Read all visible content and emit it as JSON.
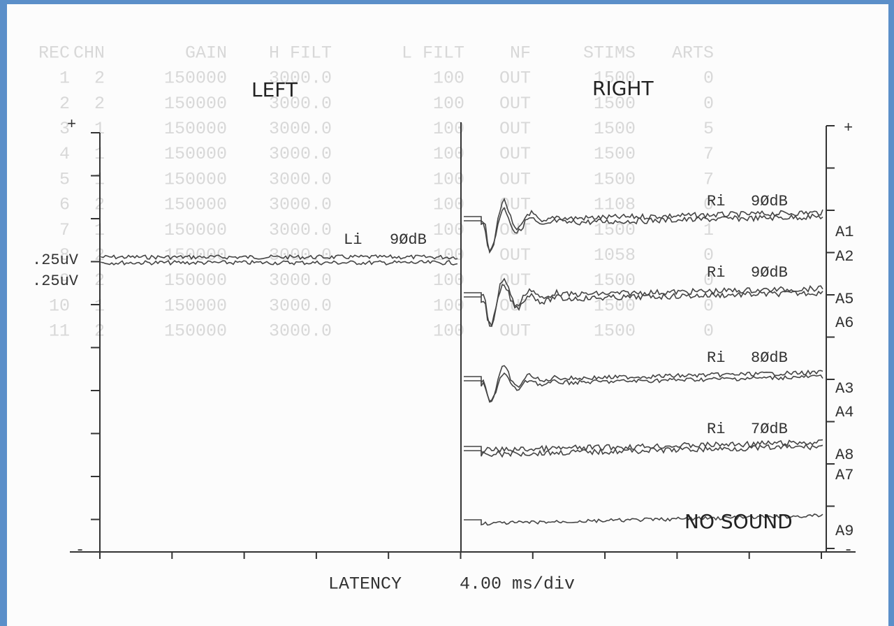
{
  "table": {
    "header": [
      "REC",
      "CHN",
      "GAIN",
      "H FILT",
      "L FILT",
      "NF",
      "STIMS",
      "ARTS"
    ],
    "rows": [
      [
        "1",
        "2",
        "150000",
        "3000.0",
        "100",
        "OUT",
        "1500",
        "0"
      ],
      [
        "2",
        "2",
        "150000",
        "3000.0",
        "100",
        "OUT",
        "1500",
        "0"
      ],
      [
        "3",
        "1",
        "150000",
        "3000.0",
        "100",
        "OUT",
        "1500",
        "5"
      ],
      [
        "4",
        "1",
        "150000",
        "3000.0",
        "100",
        "OUT",
        "1500",
        "7"
      ],
      [
        "5",
        "1",
        "150000",
        "3000.0",
        "100",
        "OUT",
        "1500",
        "7"
      ],
      [
        "6",
        "2",
        "150000",
        "3000.0",
        "100",
        "OUT",
        "1108",
        "0"
      ],
      [
        "7",
        "1",
        "150000",
        "3000.0",
        "100",
        "OUT",
        "1500",
        "1"
      ],
      [
        "8",
        "2",
        "150000",
        "3000.0",
        "100",
        "OUT",
        "1058",
        "0"
      ],
      [
        "9",
        "2",
        "150000",
        "3000.0",
        "100",
        "OUT",
        "1500",
        "0"
      ],
      [
        "10",
        "1",
        "150000",
        "3000.0",
        "100",
        "OUT",
        "1500",
        "0"
      ],
      [
        "11",
        "2",
        "150000",
        "3000.0",
        "100",
        "OUT",
        "1500",
        "0"
      ]
    ]
  },
  "plot": {
    "left_title": "LEFT",
    "right_title": "RIGHT",
    "plus_left": "+",
    "plus_right": "+",
    "minus_left": "-",
    "minus_right": "-",
    "scale_labels": [
      ".25uV",
      ".25uV"
    ],
    "left_trace_label": [
      "Li",
      "9ØdB"
    ],
    "right_trace_labels": [
      [
        "Ri",
        "9ØdB"
      ],
      [
        "Ri",
        "9ØdB"
      ],
      [
        "Ri",
        "8ØdB"
      ],
      [
        "Ri",
        "7ØdB"
      ]
    ],
    "no_sound": "NO SOUND",
    "channel_labels": [
      "A1",
      "A2",
      "A5",
      "A6",
      "A3",
      "A4",
      "A8",
      "A7",
      "A9"
    ],
    "x_label": "LATENCY",
    "x_scale": "4.00 ms/div"
  }
}
